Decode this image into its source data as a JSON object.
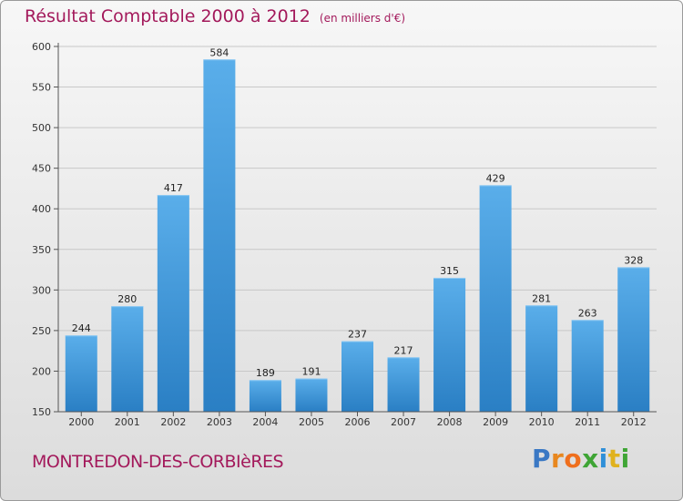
{
  "chart_data": {
    "type": "bar",
    "title": "Résultat Comptable 2000 à 2012",
    "unit_label": "(en milliers d'€)",
    "categories": [
      "2000",
      "2001",
      "2002",
      "2003",
      "2004",
      "2005",
      "2006",
      "2007",
      "2008",
      "2009",
      "2010",
      "2011",
      "2012"
    ],
    "values": [
      244,
      280,
      417,
      584,
      189,
      191,
      237,
      217,
      315,
      429,
      281,
      263,
      328
    ],
    "value_labels": [
      "244",
      "280",
      "417",
      "584",
      "189",
      "191",
      "237",
      "217",
      "315",
      "429",
      "281",
      "263",
      "328"
    ],
    "ylim": [
      150,
      600
    ],
    "yticks": [
      150,
      200,
      250,
      300,
      350,
      400,
      450,
      500,
      550,
      600
    ],
    "ytick_labels": [
      "150",
      "200",
      "250",
      "300",
      "350",
      "400",
      "450",
      "500",
      "550",
      "600"
    ],
    "xlabel": "",
    "ylabel": "",
    "grid": true,
    "colors": {
      "bar_top": "#5aaeea",
      "bar_bottom": "#2a7fc4",
      "title": "#a3195b",
      "grid": "#c8c8c8"
    }
  },
  "footer": {
    "city": "MONTREDON-DES-CORBIèRES",
    "logo_letters": [
      "P",
      "r",
      "o",
      "x",
      "i",
      "t",
      "i"
    ],
    "logo_colors": [
      "#3a78c4",
      "#e8871e",
      "#ef6f1d",
      "#3fa535",
      "#2f8fd8",
      "#e0b21e",
      "#3fa535"
    ]
  }
}
